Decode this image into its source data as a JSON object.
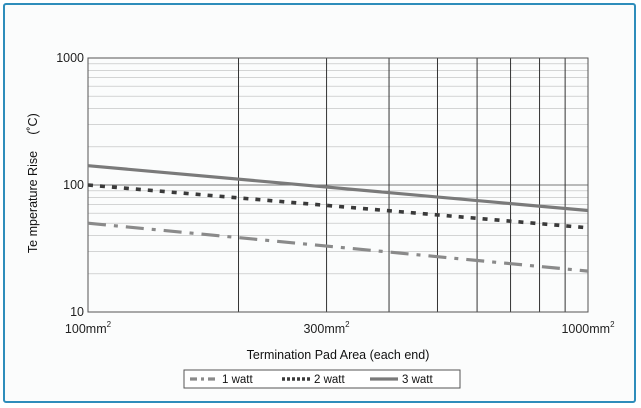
{
  "chart_data": {
    "type": "line",
    "title": "",
    "xlabel": "Termination Pad Area (each end)",
    "ylabel": "Te mperature Rise (˚C)",
    "ylabel_parts": [
      "Te mperature Rise",
      "(˚C)"
    ],
    "x_scale": "log",
    "y_scale": "log",
    "xlim": [
      100,
      1000
    ],
    "ylim": [
      10,
      1000
    ],
    "x_ticks": [
      {
        "value": 100,
        "text": "100mm",
        "sup": "2"
      },
      {
        "value": 300,
        "text": "300mm",
        "sup": "2"
      },
      {
        "value": 1000,
        "text": "1000mm",
        "sup": "2"
      }
    ],
    "y_ticks": [
      {
        "value": 10,
        "text": "10"
      },
      {
        "value": 100,
        "text": "100"
      },
      {
        "value": 1000,
        "text": "1000"
      }
    ],
    "grid": true,
    "legend_position": "bottom-center",
    "series": [
      {
        "name": "1 watt",
        "style": "dash-dot",
        "color": "#8a8a8a",
        "points": [
          [
            100,
            50
          ],
          [
            1000,
            21
          ]
        ]
      },
      {
        "name": "2 watt",
        "style": "dotted",
        "color": "#3a3a3a",
        "points": [
          [
            100,
            100
          ],
          [
            1000,
            46
          ]
        ]
      },
      {
        "name": "3 watt",
        "style": "solid",
        "color": "#7a7a7a",
        "points": [
          [
            100,
            142
          ],
          [
            1000,
            63
          ]
        ]
      }
    ]
  }
}
